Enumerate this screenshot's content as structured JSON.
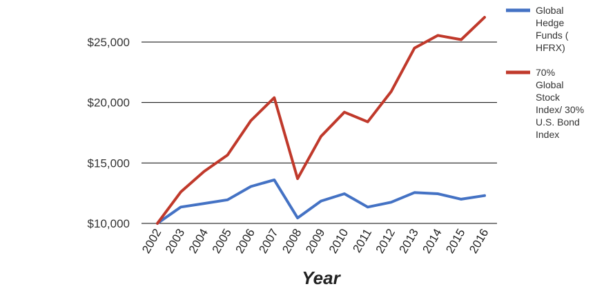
{
  "chart_data": {
    "type": "line",
    "title": "",
    "xlabel": "Year",
    "ylabel": "",
    "categories": [
      "2002",
      "2003",
      "2004",
      "2005",
      "2006",
      "2007",
      "2008",
      "2009",
      "2010",
      "2011",
      "2012",
      "2013",
      "2014",
      "2015",
      "2016"
    ],
    "ylim": [
      10000,
      27500
    ],
    "yticks": [
      10000,
      15000,
      20000,
      25000
    ],
    "ytick_labels": [
      "$10,000",
      "$15,000",
      "$20,000",
      "$25,000"
    ],
    "grid": true,
    "legend_position": "right",
    "series": [
      {
        "name_lines": [
          "Global",
          "Hedge",
          "Funds (",
          "HFRX)"
        ],
        "color": "#4472C4",
        "values": [
          10000,
          11350,
          11650,
          11950,
          13050,
          13600,
          10450,
          11850,
          12450,
          11350,
          11750,
          12550,
          12450,
          12000,
          12300
        ]
      },
      {
        "name_lines": [
          "70%",
          "Global",
          "Stock",
          "Index/ 30%",
          "U.S. Bond",
          "Index"
        ],
        "color": "#C0392B",
        "values": [
          10000,
          12600,
          14300,
          15650,
          18500,
          20400,
          13700,
          17200,
          19200,
          18400,
          20900,
          24500,
          25550,
          25200,
          27050
        ]
      }
    ]
  }
}
